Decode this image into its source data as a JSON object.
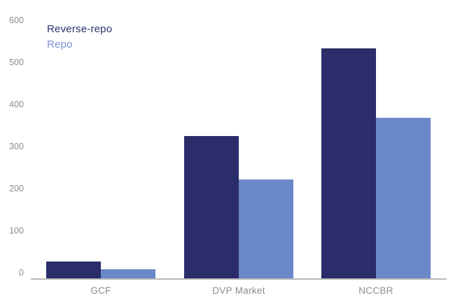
{
  "chart_data": {
    "type": "bar",
    "categories": [
      "GCF",
      "DVP Market",
      "NCCBR"
    ],
    "series": [
      {
        "name": "Reverse-repo",
        "color": "#2a2d69",
        "values": [
          40,
          338,
          546
        ]
      },
      {
        "name": "Repo",
        "color": "#6b88c8",
        "values": [
          21,
          235,
          381
        ]
      }
    ],
    "title": "",
    "xlabel": "",
    "ylabel": "",
    "ylim": [
      0,
      600
    ],
    "yticks": [
      0,
      100,
      200,
      300,
      400,
      500,
      600
    ],
    "grid": false,
    "legend_position": "top-left"
  },
  "legend": {
    "items": [
      {
        "label": "Reverse-repo",
        "color": "#2e3272"
      },
      {
        "label": "Repo",
        "color": "#7d90d8"
      }
    ]
  },
  "axis": {
    "line_color": "#bababa",
    "tick_label_color": "#8c8c8c",
    "category_label_color": "#8c8c8c"
  },
  "background": "#ffffff"
}
